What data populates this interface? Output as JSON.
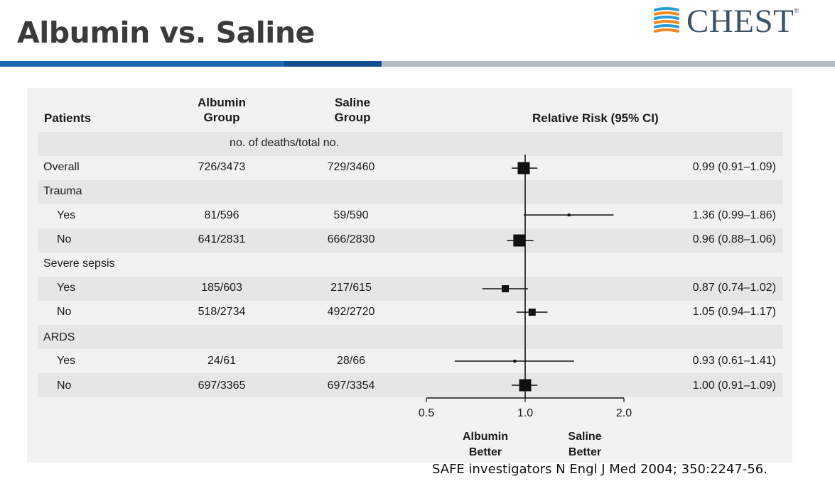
{
  "slide": {
    "title": "Albumin vs. Saline",
    "logo_text": "CHEST",
    "logo_reg": "®",
    "citation": "SAFE investigators N Engl J Med 2004; 350:2247-56."
  },
  "colors": {
    "blue_bar": "#1b67b1",
    "dark_blue_bar": "#0f4f91",
    "gray_bar": "#b6bcc3",
    "logo_text": "#3d5468"
  },
  "table": {
    "headers": {
      "patients": "Patients",
      "albumin_line1": "Albumin",
      "albumin_line2": "Group",
      "saline_line1": "Saline",
      "saline_line2": "Group",
      "rr": "Relative Risk (95% CI)"
    },
    "subheader": "no. of deaths/total no.",
    "labels": [
      "Overall",
      "Trauma",
      "Yes",
      "No",
      "Severe sepsis",
      "Yes",
      "No",
      "ARDS",
      "Yes",
      "No"
    ],
    "albumin": [
      "726/3473",
      "",
      "81/596",
      "641/2831",
      "",
      "185/603",
      "518/2734",
      "",
      "24/61",
      "697/3365"
    ],
    "saline": [
      "729/3460",
      "",
      "59/590",
      "666/2830",
      "",
      "217/615",
      "492/2720",
      "",
      "28/66",
      "697/3354"
    ],
    "rr_text": [
      "0.99 (0.91–1.09)",
      "",
      "1.36 (0.99–1.86)",
      "0.96 (0.88–1.06)",
      "",
      "0.87 (0.74–1.02)",
      "1.05 (0.94–1.17)",
      "",
      "0.93 (0.61–1.41)",
      "1.00 (0.91–1.09)"
    ]
  },
  "chart_data": {
    "type": "forest",
    "scale": "log",
    "xlim": [
      0.5,
      2.0
    ],
    "xticks": [
      "0.5",
      "1.0",
      "2.0"
    ],
    "reference_line": 1.0,
    "x_left_label_1": "Albumin",
    "x_left_label_2": "Better",
    "x_right_label_1": "Saline",
    "x_right_label_2": "Better",
    "rows": [
      {
        "label": "Overall",
        "rr": 0.99,
        "lo": 0.91,
        "hi": 1.09,
        "weight": "large"
      },
      {
        "label": "Trauma: Yes",
        "rr": 1.36,
        "lo": 0.99,
        "hi": 1.86,
        "weight": "tiny"
      },
      {
        "label": "Trauma: No",
        "rr": 0.96,
        "lo": 0.88,
        "hi": 1.06,
        "weight": "large"
      },
      {
        "label": "Severe sepsis: Yes",
        "rr": 0.87,
        "lo": 0.74,
        "hi": 1.02,
        "weight": "medium"
      },
      {
        "label": "Severe sepsis: No",
        "rr": 1.05,
        "lo": 0.94,
        "hi": 1.17,
        "weight": "medium"
      },
      {
        "label": "ARDS: Yes",
        "rr": 0.93,
        "lo": 0.61,
        "hi": 1.41,
        "weight": "tiny"
      },
      {
        "label": "ARDS: No",
        "rr": 1.0,
        "lo": 0.91,
        "hi": 1.09,
        "weight": "large"
      }
    ]
  }
}
